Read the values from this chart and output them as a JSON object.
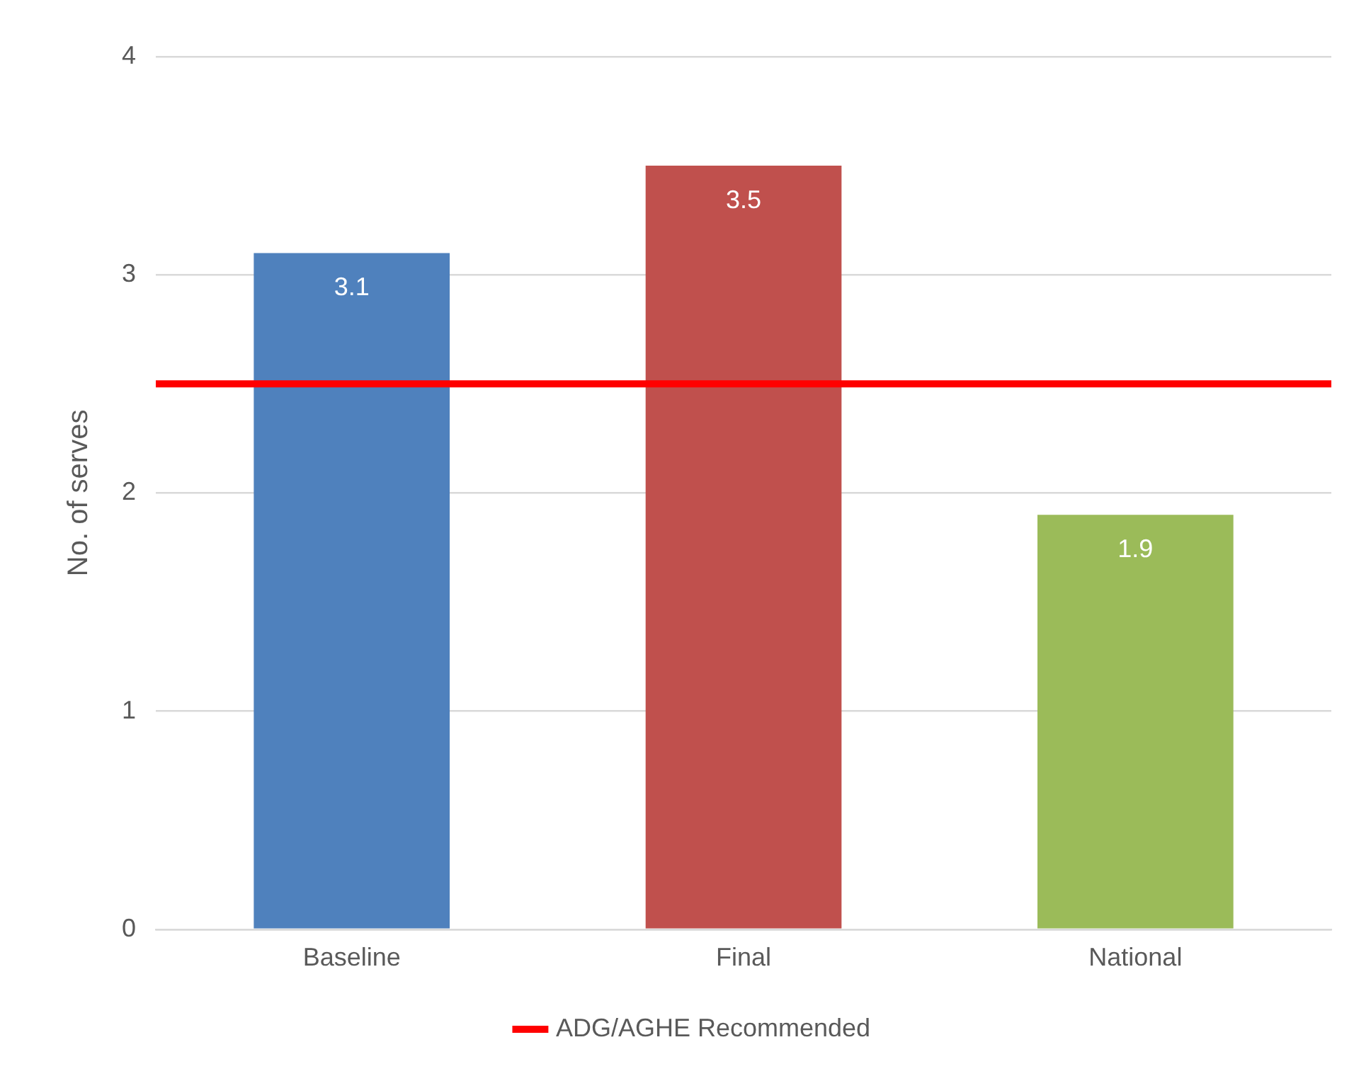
{
  "chart_data": {
    "type": "bar",
    "ylabel": "No. of serves",
    "categories": [
      "Baseline",
      "Final",
      "National"
    ],
    "values": [
      3.1,
      3.5,
      1.9
    ],
    "colors": [
      "#4f81bd",
      "#c0504d",
      "#9bbb59"
    ],
    "ylim": [
      0,
      4
    ],
    "yticks": [
      0,
      1,
      2,
      3,
      4
    ],
    "grid": "y",
    "data_labels": true,
    "legend": "bottom",
    "ref_lines": [
      {
        "axis": "y",
        "value": 2.5,
        "label": "ADG/AGHE Recommended",
        "color": "#ff0000"
      }
    ]
  }
}
